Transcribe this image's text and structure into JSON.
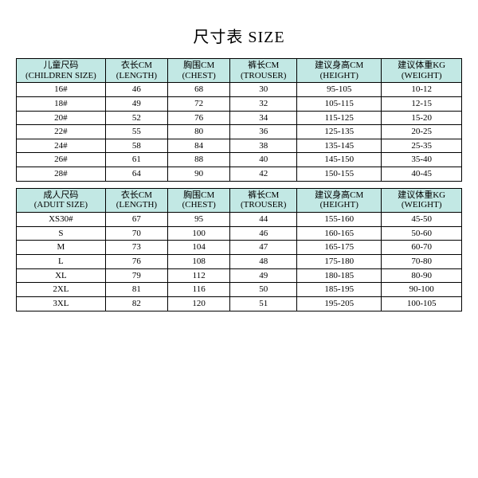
{
  "title": "尺寸表 SIZE",
  "colors": {
    "header_bg": "#c2e8e4",
    "border": "#000000",
    "bg": "#ffffff"
  },
  "columns_children": [
    {
      "zh": "儿童尺码",
      "en": "(CHILDREN SIZE)"
    },
    {
      "zh": "衣长CM",
      "en": "(LENGTH)"
    },
    {
      "zh": "胸围CM",
      "en": "(CHEST)"
    },
    {
      "zh": "裤长CM",
      "en": "(TROUSER)"
    },
    {
      "zh": "建议身高CM",
      "en": "(HEIGHT)"
    },
    {
      "zh": "建议体重KG",
      "en": "(WEIGHT)"
    }
  ],
  "columns_adult": [
    {
      "zh": "成人尺码",
      "en": "(ADUIT SIZE)"
    },
    {
      "zh": "衣长CM",
      "en": "(LENGTH)"
    },
    {
      "zh": "胸围CM",
      "en": "(CHEST)"
    },
    {
      "zh": "裤长CM",
      "en": "(TROUSER)"
    },
    {
      "zh": "建议身高CM",
      "en": "(HEIGHT)"
    },
    {
      "zh": "建议体重KG",
      "en": "(WEIGHT)"
    }
  ],
  "rows_children": [
    [
      "16#",
      "46",
      "68",
      "30",
      "95-105",
      "10-12"
    ],
    [
      "18#",
      "49",
      "72",
      "32",
      "105-115",
      "12-15"
    ],
    [
      "20#",
      "52",
      "76",
      "34",
      "115-125",
      "15-20"
    ],
    [
      "22#",
      "55",
      "80",
      "36",
      "125-135",
      "20-25"
    ],
    [
      "24#",
      "58",
      "84",
      "38",
      "135-145",
      "25-35"
    ],
    [
      "26#",
      "61",
      "88",
      "40",
      "145-150",
      "35-40"
    ],
    [
      "28#",
      "64",
      "90",
      "42",
      "150-155",
      "40-45"
    ]
  ],
  "rows_adult": [
    [
      "XS30#",
      "67",
      "95",
      "44",
      "155-160",
      "45-50"
    ],
    [
      "S",
      "70",
      "100",
      "46",
      "160-165",
      "50-60"
    ],
    [
      "M",
      "73",
      "104",
      "47",
      "165-175",
      "60-70"
    ],
    [
      "L",
      "76",
      "108",
      "48",
      "175-180",
      "70-80"
    ],
    [
      "XL",
      "79",
      "112",
      "49",
      "180-185",
      "80-90"
    ],
    [
      "2XL",
      "81",
      "116",
      "50",
      "185-195",
      "90-100"
    ],
    [
      "3XL",
      "82",
      "120",
      "51",
      "195-205",
      "100-105"
    ]
  ]
}
